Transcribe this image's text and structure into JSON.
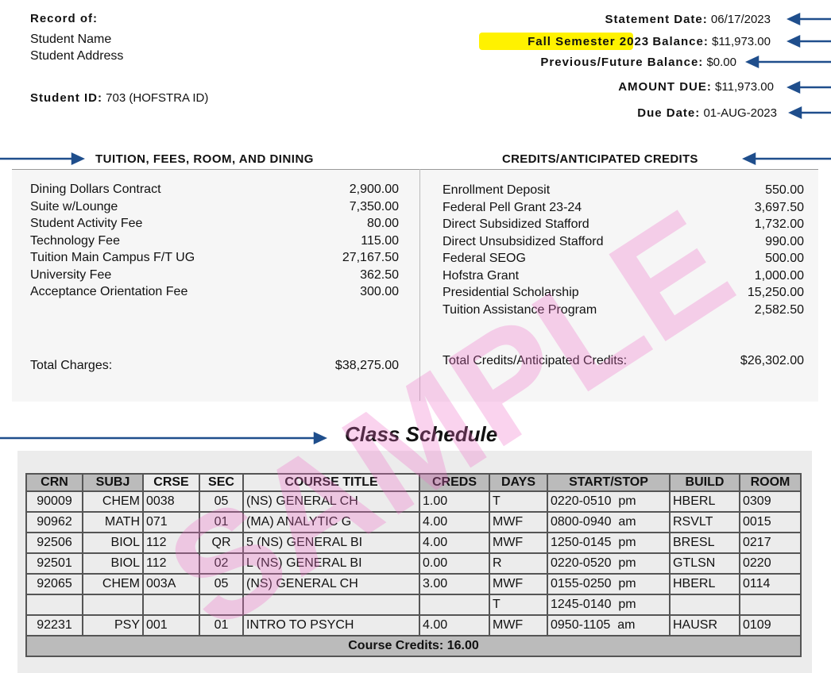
{
  "header": {
    "record_of": "Record of:",
    "student_name": "Student Name",
    "student_address": "Student Address",
    "student_id_label": "Student ID:",
    "student_id_value": "703 (HOFSTRA ID)",
    "statement_date_label": "Statement Date:",
    "statement_date": "06/17/2023",
    "semester": "Fall Semester 2023",
    "balance_label": "Balance:",
    "balance": "$11,973.00",
    "previous_label": "Previous/Future Balance:",
    "previous": "$0.00",
    "amount_due_label": "AMOUNT DUE:",
    "amount_due": "$11,973.00",
    "due_date_label": "Due Date:",
    "due_date": "01-AUG-2023"
  },
  "charges": {
    "heading": "TUITION, FEES, ROOM, AND DINING",
    "items": [
      [
        "Dining Dollars Contract",
        "2,900.00"
      ],
      [
        "Suite w/Lounge",
        "7,350.00"
      ],
      [
        "Student Activity Fee",
        "80.00"
      ],
      [
        "Technology Fee",
        "115.00"
      ],
      [
        "Tuition Main Campus F/T UG",
        "27,167.50"
      ],
      [
        "University Fee",
        "362.50"
      ],
      [
        "Acceptance Orientation Fee",
        "300.00"
      ]
    ],
    "total_label": "Total Charges:",
    "total": "$38,275.00"
  },
  "credits": {
    "heading": "CREDITS/ANTICIPATED CREDITS",
    "items": [
      [
        "Enrollment Deposit",
        "550.00"
      ],
      [
        "Federal Pell Grant 23-24",
        "3,697.50"
      ],
      [
        "Direct Subsidized Stafford",
        "1,732.00"
      ],
      [
        "Direct Unsubsidized Stafford",
        "990.00"
      ],
      [
        "Federal SEOG",
        "500.00"
      ],
      [
        "Hofstra Grant",
        "1,000.00"
      ],
      [
        "Presidential Scholarship",
        "15,250.00"
      ],
      [
        "Tuition Assistance Program",
        "2,582.50"
      ]
    ],
    "total_label": "Total Credits/Anticipated Credits:",
    "total": "$26,302.00"
  },
  "watermark": "SAMPLE",
  "schedule": {
    "title": "Class Schedule",
    "headers": [
      "CRN",
      "SUBJ",
      "CRSE",
      "SEC",
      "COURSE TITLE",
      "CREDS",
      "DAYS",
      "START/STOP",
      "BUILD",
      "ROOM"
    ],
    "rows": [
      [
        "90009",
        "CHEM",
        "0038",
        "05",
        "(NS) GENERAL CH",
        "1.00",
        "T",
        "0220-0510  pm",
        "HBERL",
        "0309"
      ],
      [
        "90962",
        "MATH",
        "071",
        "01",
        "(MA) ANALYTIC G",
        "4.00",
        "MWF",
        "0800-0940  am",
        "RSVLT",
        "0015"
      ],
      [
        "92506",
        "BIOL",
        "112",
        "QR",
        "5 (NS) GENERAL BI",
        "4.00",
        "MWF",
        "1250-0145  pm",
        "BRESL",
        "0217"
      ],
      [
        "92501",
        "BIOL",
        "112",
        "02",
        "L (NS) GENERAL BI",
        "0.00",
        "R",
        "0220-0520  pm",
        "GTLSN",
        "0220"
      ],
      [
        "92065",
        "CHEM",
        "003A",
        "05",
        "(NS) GENERAL CH",
        "3.00",
        "MWF",
        "0155-0250  pm",
        "HBERL",
        "0114"
      ],
      [
        null,
        null,
        null,
        null,
        null,
        null,
        "T",
        "1245-0140  pm",
        null,
        null
      ],
      [
        "92231",
        "PSY",
        "001",
        "01",
        "INTRO TO PSYCH",
        "4.00",
        "MWF",
        "0950-1105  am",
        "HAUSR",
        "0109"
      ]
    ],
    "footer": "Course Credits: 16.00"
  }
}
